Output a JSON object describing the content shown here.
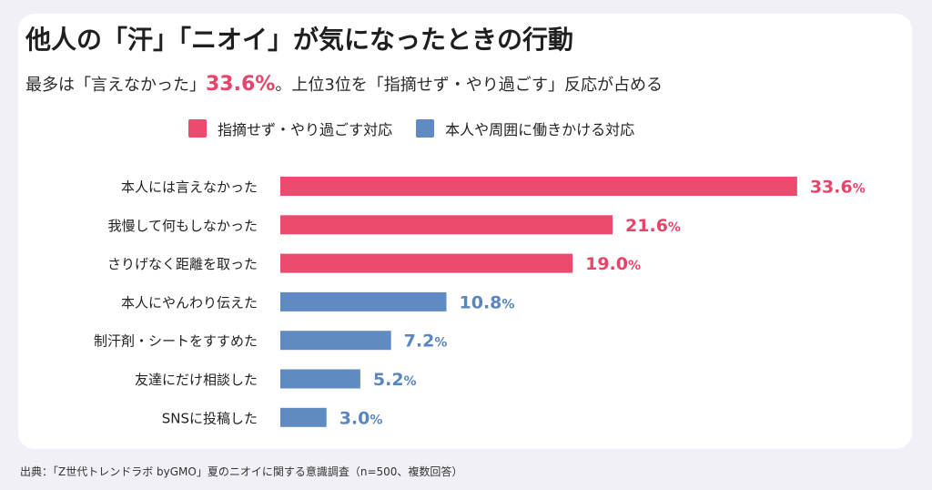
{
  "header": {
    "title": "他人の「汗」「ニオイ」が気になったときの行動",
    "subtitle_pre": "最多は「言えなかった」",
    "subtitle_highlight": "33.6%",
    "subtitle_post": "。上位3位を「指摘せず・やり過ごす」反応が占める"
  },
  "legend": [
    {
      "label": "指摘せず・やり過ごす対応",
      "color": "#ec4a6e"
    },
    {
      "label": "本人や周囲に働きかける対応",
      "color": "#5f8ac2"
    }
  ],
  "chart_data": {
    "type": "bar",
    "orientation": "horizontal",
    "title": "他人の「汗」「ニオイ」が気になったときの行動",
    "xlim": [
      0,
      35
    ],
    "unit": "%",
    "grid": false,
    "legend_position": "top",
    "categories": [
      "本人には言えなかった",
      "我慢して何もしなかった",
      "さりげなく距離を取った",
      "本人にやんわり伝えた",
      "制汗剤・シートをすすめた",
      "友達にだけ相談した",
      "SNSに投稿した"
    ],
    "values": [
      33.6,
      21.6,
      19.0,
      10.8,
      7.2,
      5.2,
      3.0
    ],
    "value_labels": [
      "33.6",
      "21.6",
      "19.0",
      "10.8",
      "7.2",
      "5.2",
      "3.0"
    ],
    "group": [
      0,
      0,
      0,
      1,
      1,
      1,
      1
    ],
    "colors": [
      "#ec4a6e",
      "#5f8ac2"
    ],
    "label_colors": [
      "#e8436b",
      "#5a86bf"
    ]
  },
  "source": "出典：「Z世代トレンドラボ byGMO」夏のニオイに関する意識調査（n=500、複数回答）"
}
